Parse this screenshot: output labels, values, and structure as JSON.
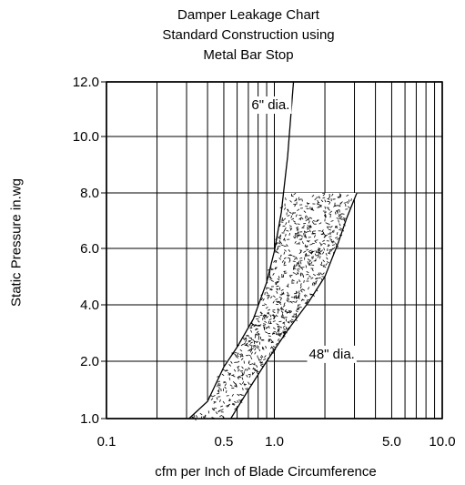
{
  "chart_data": {
    "type": "line",
    "title": [
      "Damper Leakage Chart",
      "Standard Construction using",
      "Metal Bar Stop"
    ],
    "xlabel": "cfm per Inch of Blade Circumference",
    "ylabel": "Static Pressure in.wg",
    "x_scale": "log",
    "xlim": [
      0.1,
      10.0
    ],
    "ylim": [
      1.0,
      12.0
    ],
    "x_ticks": [
      "0.1",
      "0.5",
      "1.0",
      "5.0",
      "10.0"
    ],
    "y_ticks": [
      "12.0",
      "10.0",
      "8.0",
      "6.0",
      "4.0",
      "2.0",
      "1.0"
    ],
    "grid": true,
    "series": [
      {
        "name": "6\" dia.",
        "x": [
          0.31,
          0.4,
          0.5,
          0.6,
          0.75,
          0.9,
          1.0,
          1.1,
          1.2,
          1.3
        ],
        "y": [
          1.0,
          1.3,
          1.9,
          2.5,
          3.5,
          4.8,
          5.9,
          7.3,
          9.3,
          12.0
        ]
      },
      {
        "name": "48\" dia.",
        "x": [
          0.55,
          0.7,
          0.9,
          1.2,
          1.6,
          2.0,
          2.4,
          2.7,
          3.1
        ],
        "y": [
          1.0,
          1.5,
          2.0,
          3.1,
          4.1,
          5.0,
          6.2,
          7.1,
          8.0
        ]
      }
    ],
    "shaded_region": {
      "between": [
        "6\" dia.",
        "48\" dia."
      ],
      "y_range": [
        1.0,
        8.0
      ],
      "pattern": "stipple"
    },
    "annotations": [
      {
        "text": "6\" dia.",
        "x": 0.95,
        "y": 11.0
      },
      {
        "text": "48\" dia.",
        "x": 2.2,
        "y": 2.1
      }
    ]
  }
}
